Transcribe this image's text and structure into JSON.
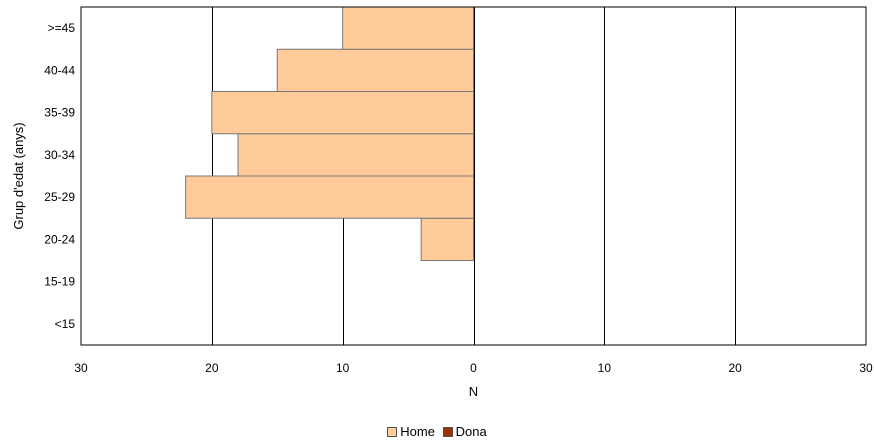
{
  "chart_data": {
    "type": "bar",
    "orientation": "horizontal",
    "style": "population-pyramid",
    "categories": [
      "<15",
      "15-19",
      "20-24",
      "25-29",
      "30-34",
      "35-39",
      "40-44",
      ">=45"
    ],
    "series": [
      {
        "name": "Home",
        "color": "#FFCC99",
        "side": "left",
        "values": [
          0,
          0,
          4,
          22,
          18,
          20,
          15,
          10
        ]
      },
      {
        "name": "Dona",
        "color": "#993300",
        "side": "right",
        "values": [
          0,
          0,
          0,
          0,
          0,
          0,
          0,
          0
        ]
      }
    ],
    "xlabel": "N",
    "ylabel": "Grup d'edat (anys)",
    "xlim": [
      -30,
      30
    ],
    "x_ticks": [
      {
        "value": -30,
        "label": "30"
      },
      {
        "value": -20,
        "label": "20"
      },
      {
        "value": -10,
        "label": "10"
      },
      {
        "value": 0,
        "label": "0"
      },
      {
        "value": 10,
        "label": "10"
      },
      {
        "value": 20,
        "label": "20"
      },
      {
        "value": 30,
        "label": "30"
      }
    ],
    "grid": "vertical",
    "legend_position": "bottom-center"
  }
}
